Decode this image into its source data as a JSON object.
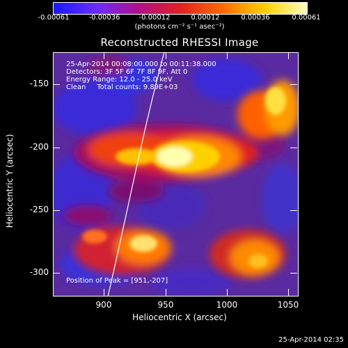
{
  "colorbar": {
    "ticks": [
      "-0.00061",
      "-0.00036",
      "-0.00012",
      "0.00012",
      "0.00036",
      "0.00061"
    ],
    "unit": "(photons cm⁻² s⁻¹ asec⁻²)",
    "colors": [
      "#1818ff",
      "#6a2cff",
      "#b0108a",
      "#e02020",
      "#ff6a00",
      "#ffd000",
      "#ffffc0"
    ]
  },
  "title": "Reconstructed RHESSI Image",
  "info": {
    "line1": "25-Apr-2014 00:08:00.000 to 00:11:38.000",
    "line2": "Detectors: 3F 5F 6F 7F 8F 9F, Att 0",
    "line3": "Energy Range: 12.0 - 25.0 keV",
    "line4": "Clean     Total counts: 9.89E+03"
  },
  "axes": {
    "xlabel": "Heliocentric X (arcsec)",
    "ylabel": "Heliocentric Y (arcsec)",
    "xticks": [
      "900",
      "950",
      "1000",
      "1050"
    ],
    "yticks": [
      "-150",
      "-200",
      "-250",
      "-300"
    ],
    "xrange": [
      857,
      1052
    ],
    "yrange": [
      -318,
      -124
    ]
  },
  "peak": "Position of Peak = [951,-207]",
  "timestamp": "25-Apr-2014 02:35"
}
